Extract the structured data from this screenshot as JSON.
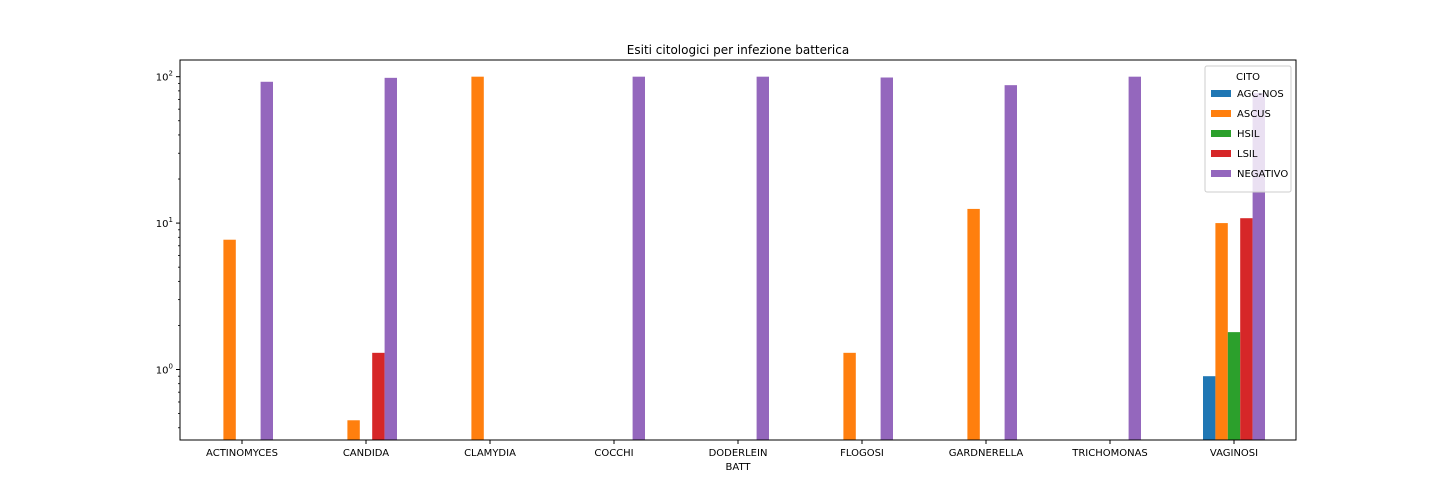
{
  "chart_data": {
    "type": "bar",
    "title": "Esiti citologici per infezione batterica",
    "xlabel": "BATT",
    "ylabel": "",
    "yscale": "log",
    "ylim": [
      0.33,
      130
    ],
    "grid": false,
    "legend": {
      "title": "CITO",
      "placement": "top-right"
    },
    "categories": [
      "ACTINOMYCES",
      "CANDIDA",
      "CLAMYDIA",
      "COCCHI",
      "DODERLEIN",
      "FLOGOSI",
      "GARDNERELLA",
      "TRICHOMONAS",
      "VAGINOSI"
    ],
    "yticks": [
      {
        "value": 1,
        "mantissa": "10",
        "exp": "0"
      },
      {
        "value": 10,
        "mantissa": "10",
        "exp": "1"
      },
      {
        "value": 100,
        "mantissa": "10",
        "exp": "2"
      }
    ],
    "series": [
      {
        "name": "AGC-NOS",
        "color": "#1f77b4",
        "values": [
          null,
          null,
          null,
          null,
          null,
          null,
          null,
          null,
          0.9
        ]
      },
      {
        "name": "ASCUS",
        "color": "#ff7f0e",
        "values": [
          7.7,
          0.45,
          100,
          null,
          null,
          1.3,
          12.5,
          null,
          10
        ]
      },
      {
        "name": "HSIL",
        "color": "#2ca02c",
        "values": [
          null,
          null,
          null,
          null,
          null,
          null,
          null,
          null,
          1.8
        ]
      },
      {
        "name": "LSIL",
        "color": "#d62728",
        "values": [
          null,
          1.3,
          null,
          null,
          null,
          null,
          null,
          null,
          10.8
        ]
      },
      {
        "name": "NEGATIVO",
        "color": "#9467bd",
        "values": [
          92.3,
          98.2,
          null,
          100,
          100,
          98.7,
          87.5,
          100,
          77.5
        ]
      }
    ]
  }
}
